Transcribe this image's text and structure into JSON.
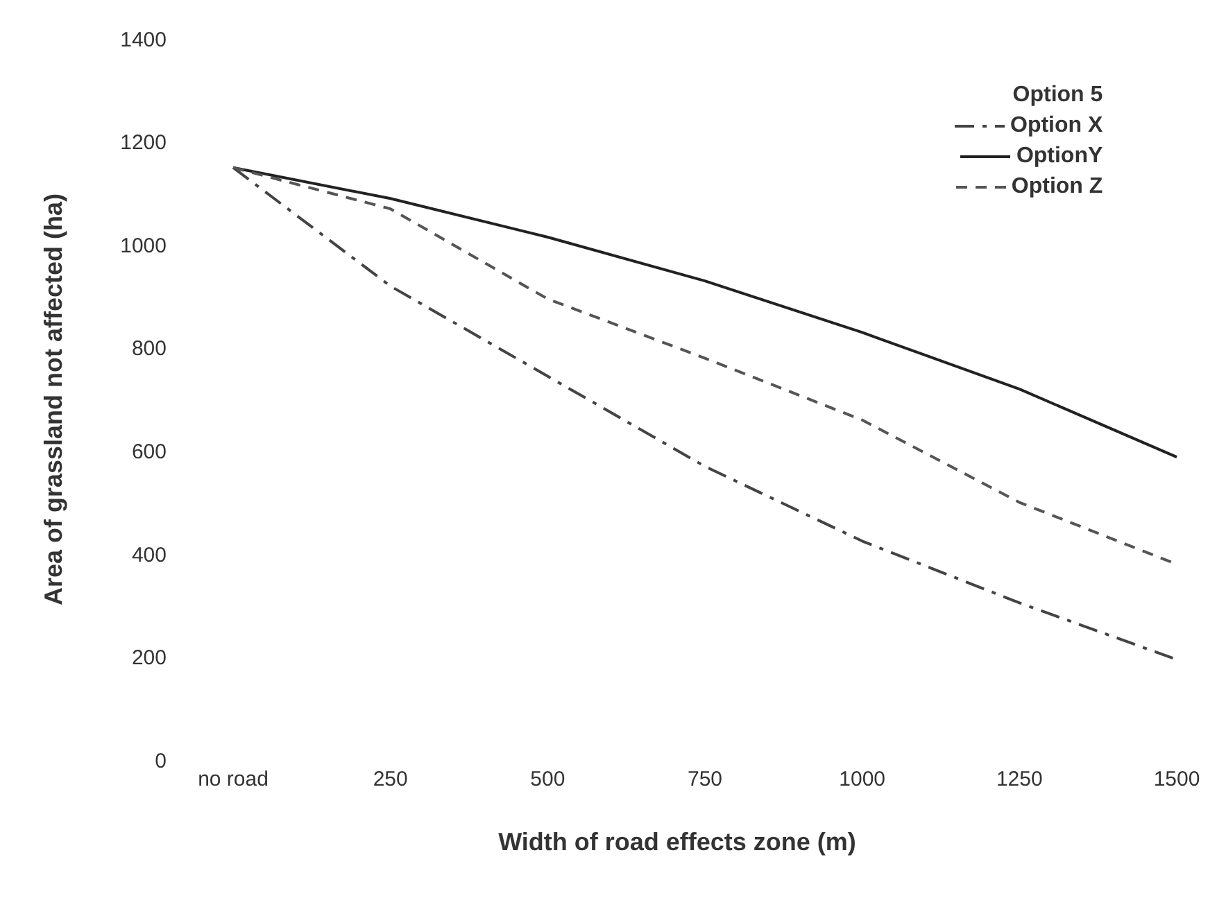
{
  "chart_data": {
    "type": "line",
    "xlabel": "Width of road effects zone (m)",
    "ylabel": "Area of grassland not affected (ha)",
    "legend_title": "Option 5",
    "legend": "top right",
    "grid": false,
    "marker": "none",
    "categories": [
      "no road",
      "250",
      "500",
      "750",
      "1000",
      "1250",
      "1500"
    ],
    "ylim": [
      0,
      1400
    ],
    "yticks": [
      0,
      200,
      400,
      600,
      800,
      1000,
      1200,
      1400
    ],
    "series": [
      {
        "name": "Option X",
        "color": "#444444",
        "line_style": "dashdot",
        "values": [
          1150,
          920,
          745,
          570,
          425,
          305,
          195
        ]
      },
      {
        "name": "OptionY",
        "color": "#222222",
        "line_style": "solid",
        "values": [
          1150,
          1090,
          1015,
          930,
          830,
          720,
          588
        ]
      },
      {
        "name": "Option Z",
        "color": "#555555",
        "line_style": "dashed",
        "values": [
          1150,
          1070,
          895,
          780,
          660,
          500,
          380
        ]
      }
    ]
  }
}
